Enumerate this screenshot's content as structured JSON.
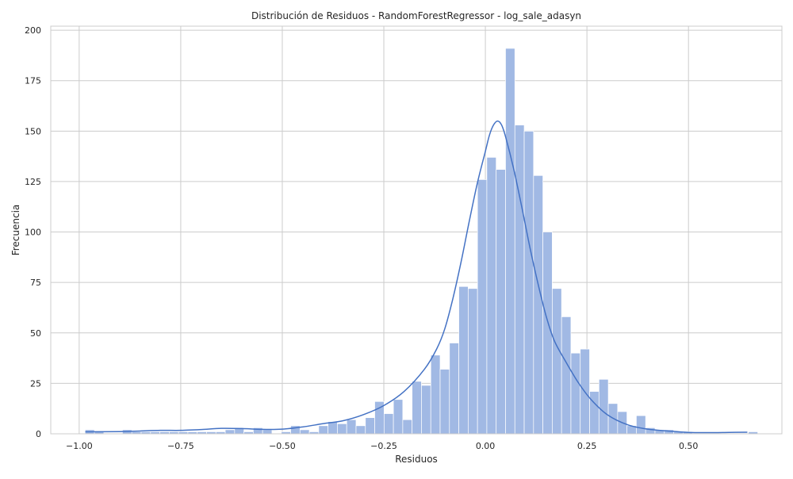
{
  "chart_data": {
    "type": "histogram",
    "title": "Distribución de Residuos - RandomForestRegressor - log_sale_adasyn",
    "xlabel": "Residuos",
    "ylabel": "Frecuencia",
    "xlim": [
      -1.07,
      0.73
    ],
    "ylim": [
      0,
      202
    ],
    "xticks": [
      -1.0,
      -0.75,
      -0.5,
      -0.25,
      0.0,
      0.25,
      0.5
    ],
    "xtick_labels": [
      "−1.00",
      "−0.75",
      "−0.50",
      "−0.25",
      "0.00",
      "0.25",
      "0.50"
    ],
    "yticks": [
      0,
      25,
      50,
      75,
      100,
      125,
      150,
      175,
      200
    ],
    "ytick_labels": [
      "0",
      "25",
      "50",
      "75",
      "100",
      "125",
      "150",
      "175",
      "200"
    ],
    "grid": true,
    "bin_start": -0.9854,
    "bin_width": 0.023,
    "bar_values": [
      2,
      1,
      0,
      0,
      2,
      1,
      1,
      1,
      1,
      1,
      1,
      1,
      1,
      1,
      1,
      2,
      3,
      1,
      3,
      2,
      0,
      1,
      4,
      2,
      1,
      4,
      6,
      5,
      7,
      4,
      8,
      16,
      10,
      17,
      7,
      26,
      24,
      39,
      32,
      45,
      73,
      72,
      126,
      137,
      131,
      191,
      153,
      150,
      128,
      100,
      72,
      58,
      40,
      42,
      21,
      27,
      15,
      11,
      4,
      9,
      3,
      2,
      2,
      1,
      1,
      0,
      0,
      0,
      0,
      0,
      0,
      1
    ],
    "colors": {
      "bar_fill": "#a1b9e4",
      "bar_edge": "#ffffff",
      "kde_line": "#4472c4",
      "grid": "#cccccc",
      "frame": "#cccccc"
    },
    "kde": [
      [
        -0.985,
        1
      ],
      [
        -0.9,
        1.1
      ],
      [
        -0.85,
        1.4
      ],
      [
        -0.8,
        1.7
      ],
      [
        -0.75,
        1.7
      ],
      [
        -0.7,
        2.1
      ],
      [
        -0.65,
        2.7
      ],
      [
        -0.6,
        2.6
      ],
      [
        -0.55,
        2.2
      ],
      [
        -0.5,
        2.3
      ],
      [
        -0.45,
        3.4
      ],
      [
        -0.4,
        5.0
      ],
      [
        -0.35,
        6.5
      ],
      [
        -0.3,
        9.5
      ],
      [
        -0.25,
        14
      ],
      [
        -0.2,
        21
      ],
      [
        -0.15,
        32
      ],
      [
        -0.12,
        42
      ],
      [
        -0.1,
        52
      ],
      [
        -0.08,
        67
      ],
      [
        -0.06,
        85
      ],
      [
        -0.04,
        105
      ],
      [
        -0.02,
        124
      ],
      [
        0.0,
        140
      ],
      [
        0.01,
        148
      ],
      [
        0.02,
        153
      ],
      [
        0.03,
        155
      ],
      [
        0.04,
        153
      ],
      [
        0.05,
        147
      ],
      [
        0.07,
        131
      ],
      [
        0.09,
        112
      ],
      [
        0.11,
        92
      ],
      [
        0.13,
        74
      ],
      [
        0.15,
        58
      ],
      [
        0.17,
        46
      ],
      [
        0.2,
        35
      ],
      [
        0.23,
        25
      ],
      [
        0.26,
        17
      ],
      [
        0.3,
        9.5
      ],
      [
        0.35,
        4.5
      ],
      [
        0.4,
        2.3
      ],
      [
        0.45,
        1.4
      ],
      [
        0.5,
        0.7
      ],
      [
        0.55,
        0.6
      ],
      [
        0.6,
        0.7
      ],
      [
        0.645,
        0.8
      ]
    ]
  }
}
